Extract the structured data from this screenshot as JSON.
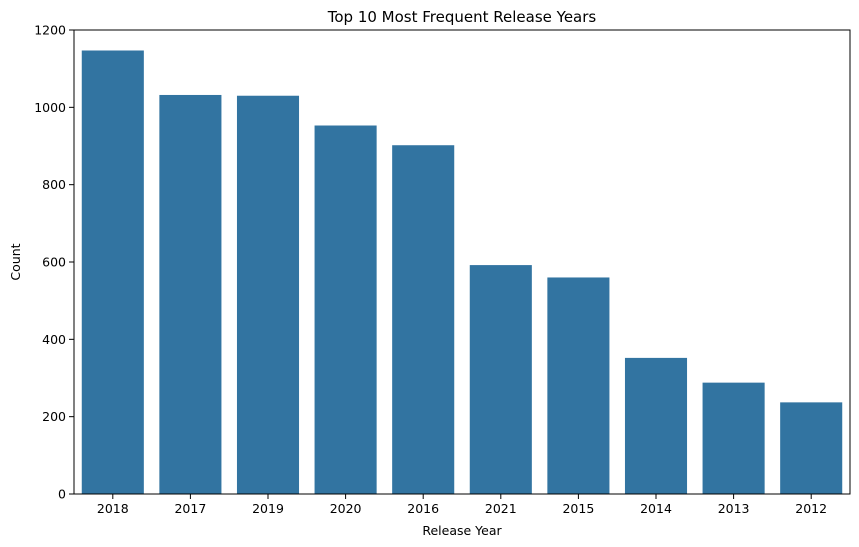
{
  "chart_data": {
    "type": "bar",
    "title": "Top 10 Most Frequent Release Years",
    "xlabel": "Release Year",
    "ylabel": "Count",
    "categories": [
      "2018",
      "2017",
      "2019",
      "2020",
      "2016",
      "2021",
      "2015",
      "2014",
      "2013",
      "2012"
    ],
    "values": [
      1147,
      1032,
      1030,
      953,
      902,
      592,
      560,
      352,
      288,
      237
    ],
    "ylim": [
      0,
      1200
    ],
    "yticks": [
      0,
      200,
      400,
      600,
      800,
      1000,
      1200
    ],
    "bar_color": "#3274a1",
    "grid": false,
    "legend": "none"
  }
}
